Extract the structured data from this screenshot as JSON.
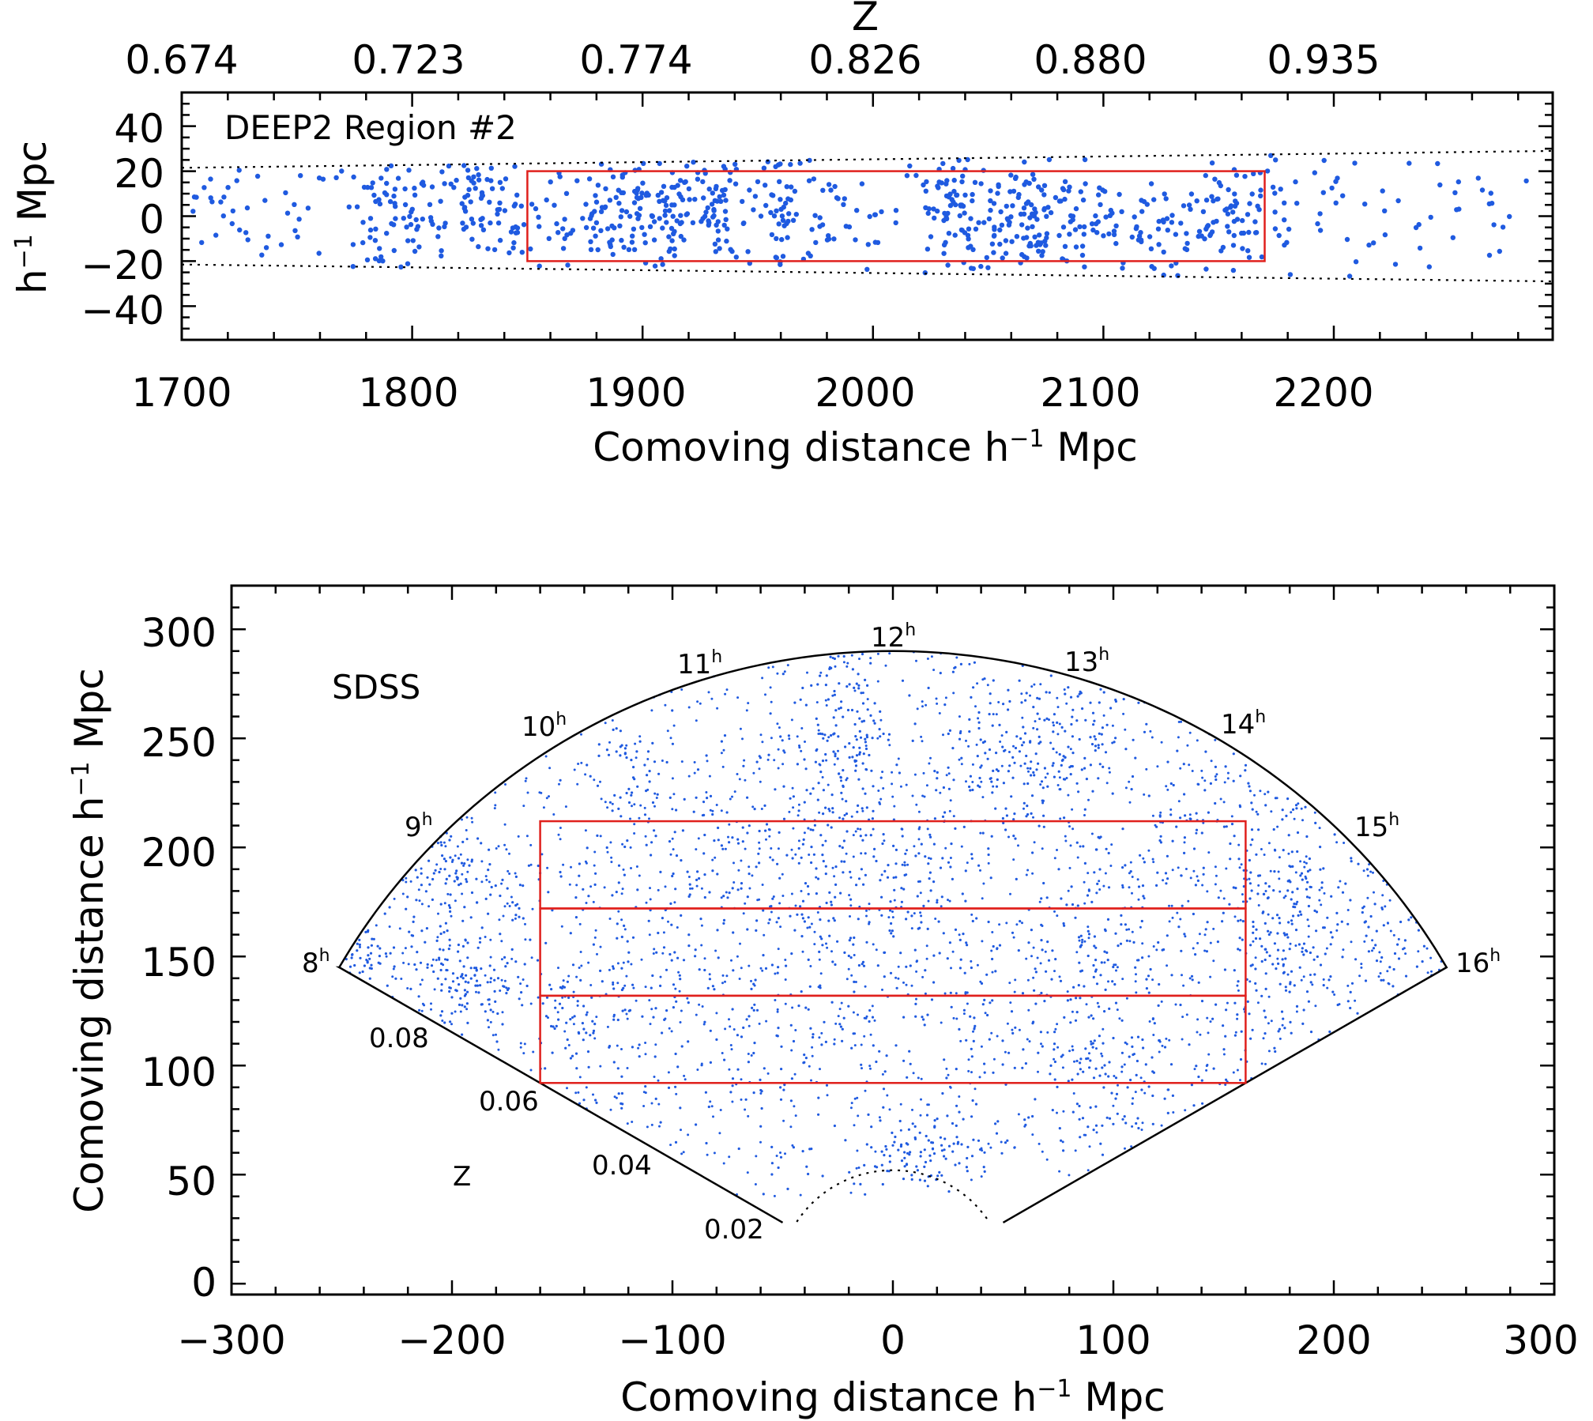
{
  "colors": {
    "points": "#1f5ae0",
    "selection": "#e0201c",
    "axis": "#000000"
  },
  "chart_data": [
    {
      "type": "scatter",
      "panel_label": "DEEP2 Region #2",
      "xlabel_main": "Comoving distance h",
      "xlabel_sup": "−1",
      "xlabel_tail": " Mpc",
      "ylabel_main": "h",
      "ylabel_sup": "−1",
      "ylabel_tail": " Mpc",
      "xlim": [
        1700,
        2295
      ],
      "ylim": [
        -55,
        55
      ],
      "x_ticks": [
        "1700",
        "1800",
        "1900",
        "2000",
        "2100",
        "2200"
      ],
      "y_ticks": [
        "−40",
        "−20",
        "0",
        "20",
        "40"
      ],
      "top_axis_label": "Z",
      "top_ticks": [
        "0.674",
        "0.723",
        "0.774",
        "0.826",
        "0.880",
        "0.935"
      ],
      "survey_edges": {
        "start": [
          1700,
          21.5
        ],
        "end": [
          2295,
          29
        ]
      },
      "selection_box": {
        "x": [
          1850,
          2170
        ],
        "y": [
          -20,
          20
        ]
      },
      "point_clusters": [
        [
          1715,
          5,
          8,
          12,
          20
        ],
        [
          1745,
          -5,
          10,
          15,
          25
        ],
        [
          1790,
          0,
          10,
          16,
          80
        ],
        [
          1825,
          10,
          12,
          12,
          70
        ],
        [
          1845,
          -5,
          8,
          12,
          30
        ],
        [
          1895,
          0,
          20,
          12,
          130
        ],
        [
          1935,
          5,
          25,
          14,
          140
        ],
        [
          1975,
          -5,
          20,
          12,
          60
        ],
        [
          2035,
          2,
          12,
          14,
          80
        ],
        [
          2068,
          0,
          15,
          14,
          130
        ],
        [
          2110,
          -8,
          15,
          10,
          50
        ],
        [
          2140,
          -5,
          20,
          12,
          60
        ],
        [
          2160,
          5,
          15,
          12,
          40
        ],
        [
          2190,
          5,
          15,
          14,
          25
        ],
        [
          2230,
          0,
          15,
          14,
          20
        ],
        [
          2265,
          5,
          20,
          12,
          20
        ]
      ]
    },
    {
      "type": "scatter",
      "panel_label": "SDSS",
      "xlabel_main": "Comoving distance h",
      "xlabel_sup": "−1",
      "xlabel_tail": " Mpc",
      "ylabel_main": "Comoving distance h",
      "ylabel_sup": "−1",
      "ylabel_tail": " Mpc",
      "xlim": [
        -300,
        300
      ],
      "ylim": [
        -5,
        320
      ],
      "x_ticks": [
        "−300",
        "−200",
        "−100",
        "0",
        "100",
        "200",
        "300"
      ],
      "y_ticks": [
        "0",
        "50",
        "100",
        "150",
        "200",
        "250",
        "300"
      ],
      "hour_labels": [
        {
          "text": "8",
          "sup": "h"
        },
        {
          "text": "9",
          "sup": "h"
        },
        {
          "text": "10",
          "sup": "h"
        },
        {
          "text": "11",
          "sup": "h"
        },
        {
          "text": "12",
          "sup": "h"
        },
        {
          "text": "13",
          "sup": "h"
        },
        {
          "text": "14",
          "sup": "h"
        },
        {
          "text": "15",
          "sup": "h"
        },
        {
          "text": "16",
          "sup": "h"
        }
      ],
      "redshift_axis_label": "Z",
      "redshift_ticks": [
        "0.08",
        "0.06",
        "0.04",
        "0.02"
      ],
      "wedge": {
        "r_outer": 290,
        "r_inner": 52,
        "half_angle_deg": 60
      },
      "selection_boxes": [
        {
          "x": [
            -160,
            160
          ],
          "y": [
            172,
            212
          ]
        },
        {
          "x": [
            -160,
            160
          ],
          "y": [
            132,
            172
          ]
        },
        {
          "x": [
            -160,
            160
          ],
          "y": [
            92,
            132
          ]
        }
      ],
      "point_clusters": [
        [
          -240,
          152,
          8,
          6,
          40
        ],
        [
          -200,
          190,
          10,
          10,
          60
        ],
        [
          -190,
          137,
          12,
          8,
          80
        ],
        [
          -165,
          175,
          20,
          12,
          50
        ],
        [
          -140,
          120,
          15,
          15,
          70
        ],
        [
          -120,
          230,
          12,
          18,
          60
        ],
        [
          -100,
          150,
          20,
          20,
          80
        ],
        [
          -80,
          200,
          25,
          15,
          80
        ],
        [
          -60,
          110,
          20,
          20,
          60
        ],
        [
          -40,
          240,
          20,
          25,
          60
        ],
        [
          -20,
          260,
          8,
          25,
          110
        ],
        [
          -30,
          170,
          20,
          20,
          60
        ],
        [
          0,
          200,
          25,
          20,
          100
        ],
        [
          10,
          60,
          15,
          8,
          100
        ],
        [
          20,
          160,
          20,
          20,
          60
        ],
        [
          40,
          250,
          20,
          20,
          80
        ],
        [
          60,
          230,
          20,
          15,
          80
        ],
        [
          80,
          260,
          20,
          12,
          80
        ],
        [
          70,
          120,
          20,
          20,
          70
        ],
        [
          90,
          160,
          15,
          15,
          60
        ],
        [
          100,
          100,
          15,
          20,
          80
        ],
        [
          120,
          200,
          25,
          20,
          80
        ],
        [
          140,
          140,
          20,
          25,
          50
        ],
        [
          160,
          230,
          20,
          20,
          60
        ],
        [
          175,
          150,
          10,
          25,
          120
        ],
        [
          190,
          180,
          20,
          15,
          60
        ],
        [
          210,
          130,
          20,
          20,
          50
        ],
        [
          230,
          160,
          15,
          15,
          30
        ],
        [
          -210,
          160,
          20,
          20,
          70
        ],
        [
          -60,
          60,
          20,
          15,
          40
        ],
        [
          50,
          80,
          30,
          15,
          50
        ],
        [
          150,
          80,
          20,
          20,
          40
        ],
        [
          0,
          120,
          40,
          20,
          70
        ],
        [
          -130,
          80,
          20,
          15,
          30
        ],
        [
          -250,
          140,
          8,
          10,
          20
        ]
      ]
    }
  ]
}
